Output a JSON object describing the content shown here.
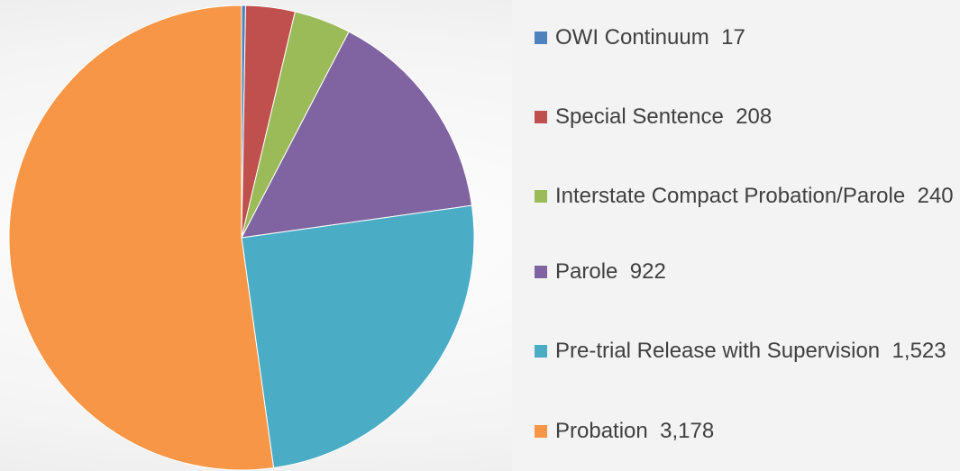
{
  "chart_data": {
    "type": "pie",
    "categories": [
      "OWI Continuum",
      "Special Sentence",
      "Interstate Compact Probation/Parole",
      "Parole",
      "Pre-trial Release with Supervision",
      "Probation"
    ],
    "values": [
      17,
      208,
      240,
      922,
      1523,
      3178
    ],
    "value_labels": [
      "17",
      "208",
      "240",
      "922",
      "1,523",
      "3,178"
    ],
    "colors": [
      "#4f81bd",
      "#c0504d",
      "#9bbb59",
      "#8064a2",
      "#4bacc6",
      "#f79646"
    ],
    "legend": "right"
  }
}
